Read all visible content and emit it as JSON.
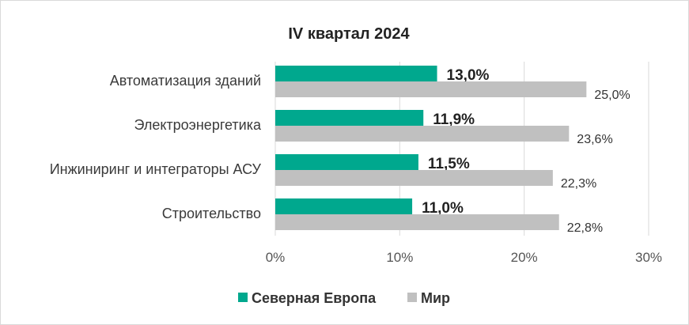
{
  "chart_data": {
    "type": "bar",
    "orientation": "horizontal",
    "title": "IV квартал 2024",
    "categories": [
      "Автоматизация зданий",
      "Электроэнергетика",
      "Инжиниринг и интеграторы АСУ",
      "Строительство"
    ],
    "series": [
      {
        "name": "Северная Европа",
        "values": [
          13.0,
          11.9,
          11.5,
          11.0
        ],
        "labels": [
          "13,0%",
          "11,9%",
          "11,5%",
          "11,0%"
        ],
        "color": "#00a88e"
      },
      {
        "name": "Мир",
        "values": [
          25.0,
          23.6,
          22.3,
          22.8
        ],
        "labels": [
          "25,0%",
          "23,6%",
          "22,3%",
          "22,8%"
        ],
        "color": "#c0c0c0"
      }
    ],
    "xlim": [
      0,
      30
    ],
    "xticks": [
      0,
      10,
      20,
      30
    ],
    "xtick_labels": [
      "0%",
      "10%",
      "20%",
      "30%"
    ],
    "grid": true,
    "legend": "bottom"
  }
}
